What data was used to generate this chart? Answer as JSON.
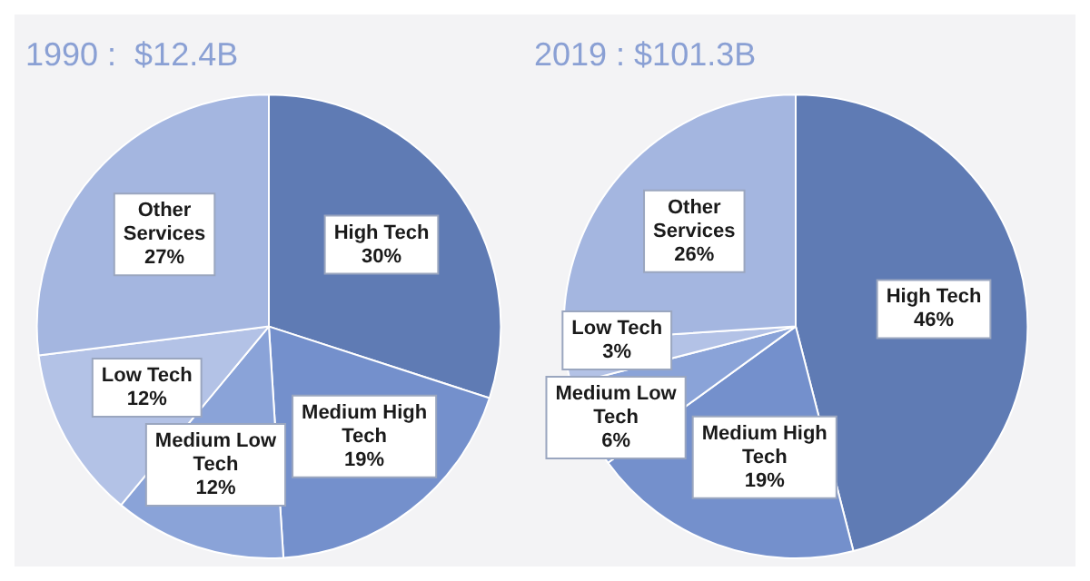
{
  "chart_data": [
    {
      "type": "pie",
      "title": "1990 :  $12.4B",
      "categories": [
        "High Tech",
        "Medium High Tech",
        "Medium Low Tech",
        "Low Tech",
        "Other Services"
      ],
      "values": [
        30,
        19,
        12,
        12,
        27
      ],
      "value_labels": [
        "30%",
        "19%",
        "12%",
        "12%",
        "27%"
      ],
      "colors": [
        "#5f7bb4",
        "#7490cc",
        "#8aa3d8",
        "#b3c2e6",
        "#a4b6e0"
      ],
      "legend": false
    },
    {
      "type": "pie",
      "title": "2019 : $101.3B",
      "categories": [
        "High Tech",
        "Medium High Tech",
        "Medium Low Tech",
        "Low Tech",
        "Other Services"
      ],
      "values": [
        46,
        19,
        6,
        3,
        26
      ],
      "value_labels": [
        "46%",
        "19%",
        "6%",
        "3%",
        "26%"
      ],
      "colors": [
        "#5f7bb4",
        "#7490cc",
        "#8aa3d8",
        "#b3c2e6",
        "#a4b6e0"
      ],
      "legend": false
    }
  ]
}
